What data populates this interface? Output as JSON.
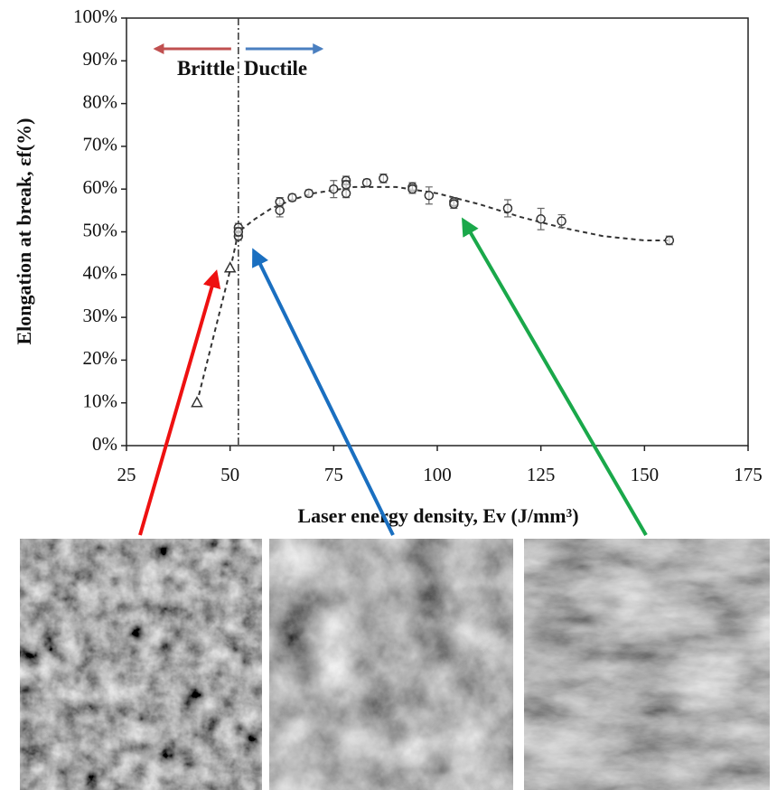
{
  "chart_data": {
    "type": "scatter",
    "y_label": "Elongation at break, εf(%)",
    "x_label": "Laser energy density, Ev (J/mm³)",
    "annotations": [
      "Brittle",
      "Ductile"
    ],
    "vline": 52,
    "xlim": [
      25,
      175
    ],
    "xticks": [
      25,
      50,
      75,
      100,
      125,
      150,
      175
    ],
    "ylim": [
      0,
      100
    ],
    "yticks": [
      {
        "value": 0,
        "label": "0%"
      },
      {
        "value": 10,
        "label": "10%"
      },
      {
        "value": 20,
        "label": "20%"
      },
      {
        "value": 30,
        "label": "30%"
      },
      {
        "value": 40,
        "label": "40%"
      },
      {
        "value": 50,
        "label": "50%"
      },
      {
        "value": 60,
        "label": "60%"
      },
      {
        "value": 70,
        "label": "70%"
      },
      {
        "value": 80,
        "label": "80%"
      },
      {
        "value": 90,
        "label": "90%"
      },
      {
        "value": 100,
        "label": "100%"
      }
    ],
    "series": [
      {
        "marker": "triangle",
        "color": "#333333",
        "x": [
          42,
          50
        ],
        "values": [
          10,
          41.5
        ]
      },
      {
        "marker": "circle",
        "color": "#333333",
        "x": [
          52,
          52,
          52,
          62,
          62,
          65,
          69,
          75,
          78,
          78,
          78,
          83,
          87,
          94,
          94,
          98,
          104,
          104,
          117,
          125,
          130,
          156
        ],
        "values": [
          49,
          51,
          50,
          55,
          57,
          58,
          59,
          60,
          59,
          62,
          61,
          61.5,
          62.5,
          60.5,
          60,
          58.5,
          57,
          56.5,
          55.5,
          53,
          52.5,
          48
        ],
        "errors": [
          1,
          1,
          1,
          1.5,
          1,
          0.8,
          0.8,
          2,
          1,
          1,
          1,
          0.8,
          1,
          1,
          1,
          2,
          1,
          1,
          2,
          2.5,
          1.5,
          1
        ]
      },
      {
        "marker": "dashed-line",
        "color": "#333333",
        "x": [
          42,
          50,
          52,
          56,
          60,
          65,
          70,
          80,
          90,
          100,
          110,
          120,
          130,
          140,
          150,
          156
        ],
        "values": [
          10,
          41,
          50,
          53,
          55.5,
          57.5,
          59,
          60.5,
          60.5,
          59,
          56.5,
          53.5,
          51,
          49,
          48,
          48
        ]
      }
    ]
  }
}
